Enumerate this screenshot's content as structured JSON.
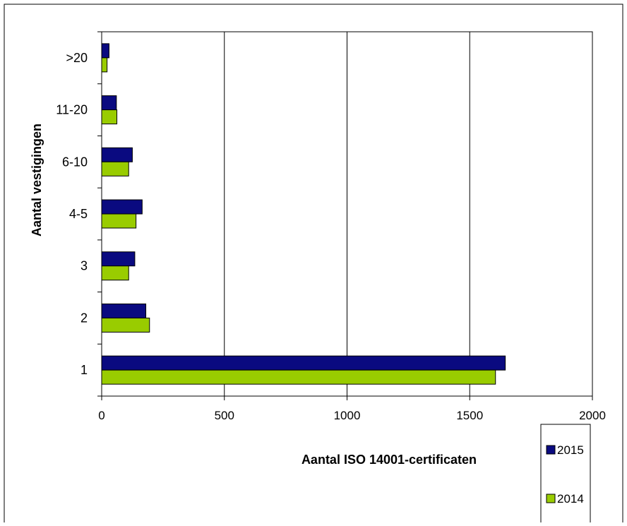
{
  "chart_data": {
    "type": "bar",
    "orientation": "horizontal",
    "categories": [
      "1",
      "2",
      "3",
      "4-5",
      "6-10",
      "11-20",
      ">20"
    ],
    "series": [
      {
        "name": "2015",
        "color": "#0a0a80",
        "values": [
          1645,
          180,
          135,
          165,
          125,
          60,
          30
        ]
      },
      {
        "name": "2014",
        "color": "#99cc00",
        "values": [
          1605,
          195,
          110,
          140,
          110,
          62,
          22
        ]
      }
    ],
    "xlabel": "Aantal ISO 14001-certificaten",
    "ylabel": "Aantal vestigingen",
    "xlim": [
      0,
      2000
    ],
    "xticks": [
      "0",
      "500",
      "1000",
      "1500",
      "2000"
    ],
    "grid": true,
    "legend_position": "bottom-right"
  }
}
